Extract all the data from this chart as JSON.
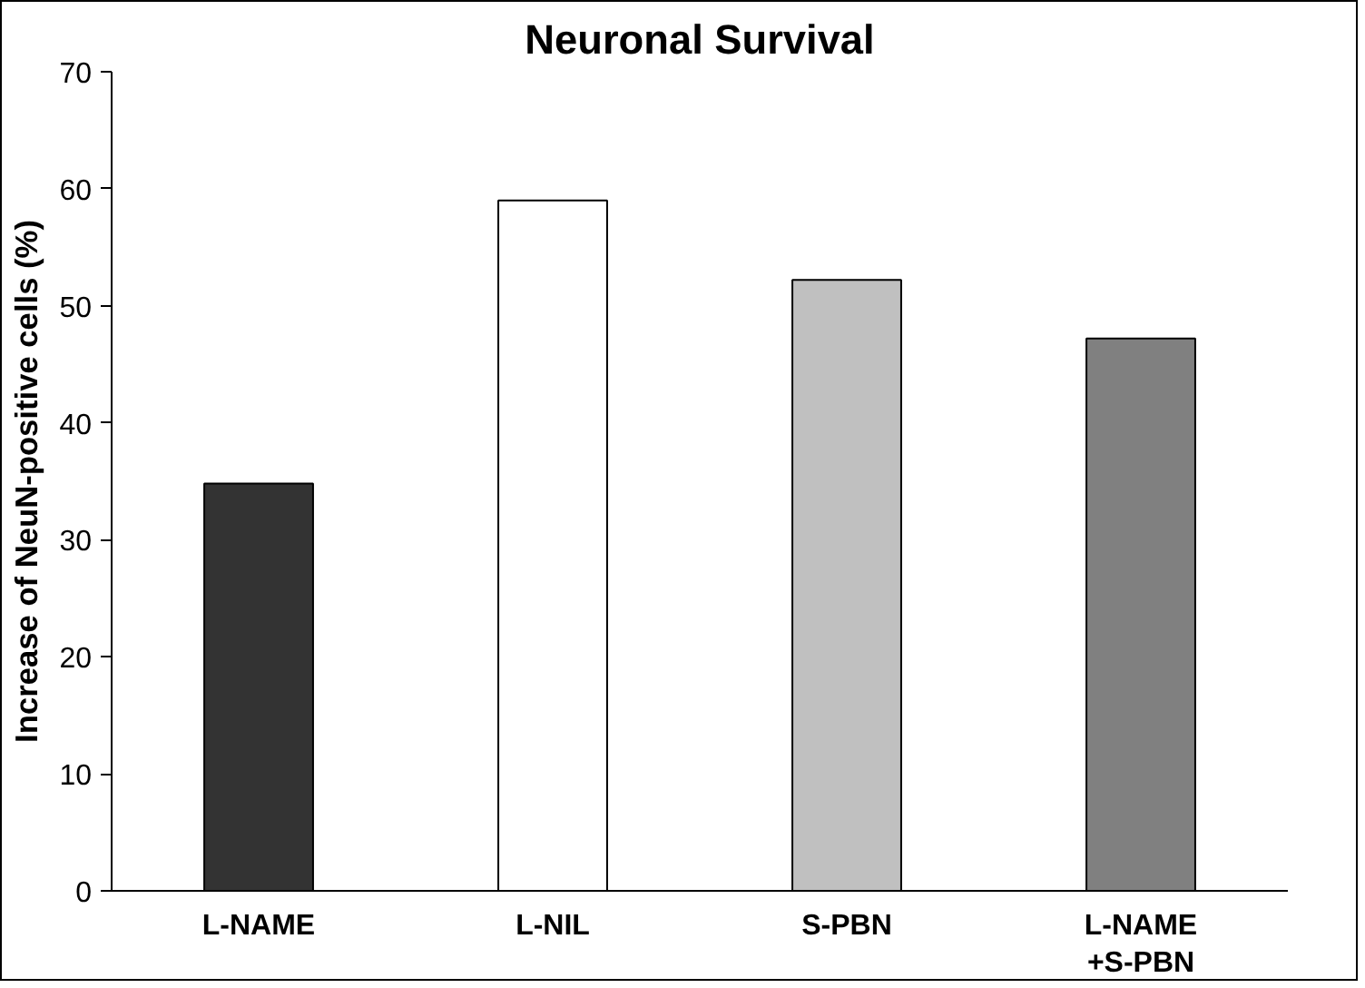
{
  "chart_data": {
    "type": "bar",
    "title": "Neuronal Survival",
    "ylabel": "Increase of NeuN-positive cells (%)",
    "categories": [
      "L-NAME",
      "L-NIL",
      "S-PBN",
      "L-NAME\n+S-PBN"
    ],
    "values": [
      34.8,
      59,
      52.2,
      47.2
    ],
    "colors": [
      "#333333",
      "#ffffff",
      "#c0c0c0",
      "#808080"
    ],
    "ylim": [
      0,
      70
    ],
    "yticks": [
      0,
      10,
      20,
      30,
      40,
      50,
      60,
      70
    ],
    "grid": false
  }
}
